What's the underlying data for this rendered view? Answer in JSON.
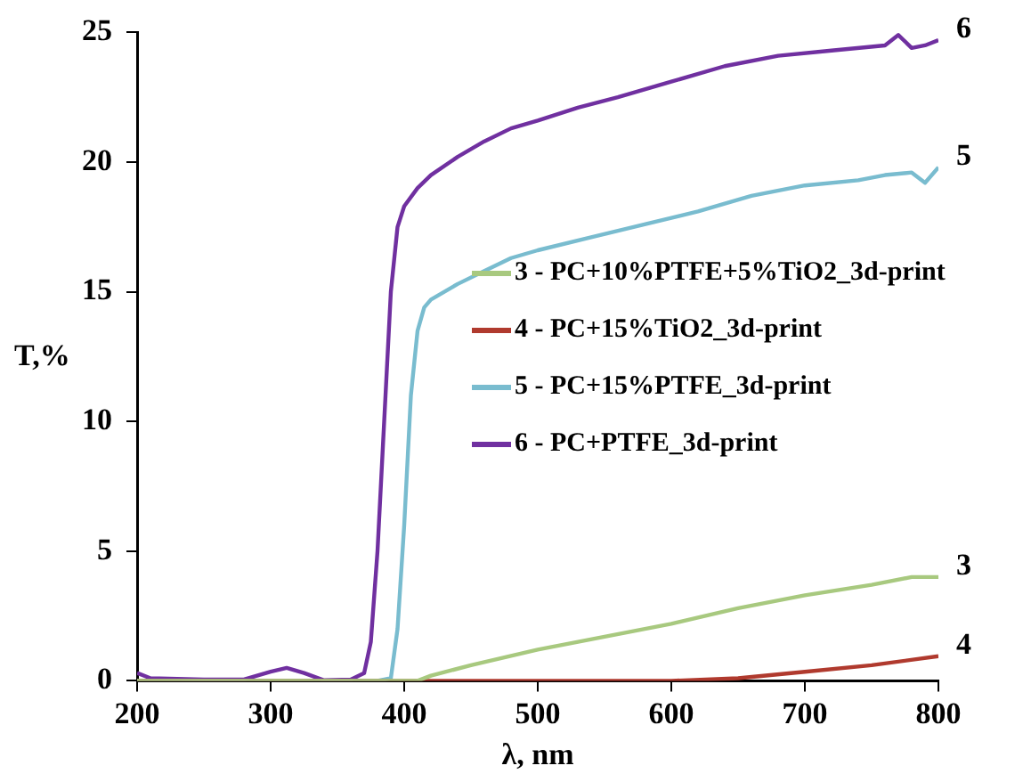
{
  "chart_data": {
    "type": "line",
    "xlabel": "λ, nm",
    "ylabel": "T,%",
    "xlim": [
      200,
      800
    ],
    "xticks": [
      200,
      300,
      400,
      500,
      600,
      700,
      800
    ],
    "ylim": [
      0,
      25
    ],
    "yticks": [
      0,
      5,
      10,
      15,
      20,
      25
    ],
    "grid": false,
    "legend": "right",
    "marker": "none",
    "line_style": "solid",
    "series": [
      {
        "name": "3 - PC+10%PTFE+5%TiO2_3d-print",
        "color": "#a8c97f",
        "x": [
          200,
          410,
          420,
          450,
          500,
          550,
          600,
          650,
          700,
          750,
          780,
          800
        ],
        "values": [
          0,
          0,
          0.2,
          0.6,
          1.2,
          1.7,
          2.2,
          2.8,
          3.3,
          3.7,
          4.0,
          4.0
        ]
      },
      {
        "name": "4 - PC+15%TiO2_3d-print",
        "color": "#b03a2e",
        "x": [
          200,
          600,
          650,
          700,
          750,
          800
        ],
        "values": [
          0,
          0,
          0.1,
          0.35,
          0.6,
          0.95
        ]
      },
      {
        "name": "5 - PC+15%PTFE_3d-print",
        "color": "#79bccf",
        "x": [
          200,
          380,
          390,
          395,
          400,
          405,
          410,
          415,
          420,
          440,
          460,
          480,
          500,
          540,
          580,
          620,
          660,
          700,
          740,
          760,
          780,
          790,
          800
        ],
        "values": [
          0,
          0,
          0.1,
          2,
          6,
          11,
          13.5,
          14.4,
          14.7,
          15.3,
          15.8,
          16.3,
          16.6,
          17.1,
          17.6,
          18.1,
          18.7,
          19.1,
          19.3,
          19.5,
          19.6,
          19.2,
          19.8
        ]
      },
      {
        "name": "6 - PC+PTFE_3d-print",
        "color": "#7030a0",
        "x": [
          200,
          210,
          250,
          280,
          300,
          312,
          325,
          340,
          360,
          370,
          375,
          380,
          385,
          390,
          395,
          400,
          410,
          420,
          440,
          460,
          480,
          500,
          530,
          560,
          600,
          640,
          680,
          720,
          760,
          770,
          780,
          790,
          800
        ],
        "values": [
          0.3,
          0.1,
          0.05,
          0.05,
          0.35,
          0.5,
          0.3,
          0.02,
          0.05,
          0.3,
          1.5,
          5,
          10,
          15,
          17.5,
          18.3,
          19.0,
          19.5,
          20.2,
          20.8,
          21.3,
          21.6,
          22.1,
          22.5,
          23.1,
          23.7,
          24.1,
          24.3,
          24.5,
          24.9,
          24.4,
          24.5,
          24.7
        ]
      }
    ],
    "annotations": [
      "3",
      "4",
      "5",
      "6"
    ]
  }
}
